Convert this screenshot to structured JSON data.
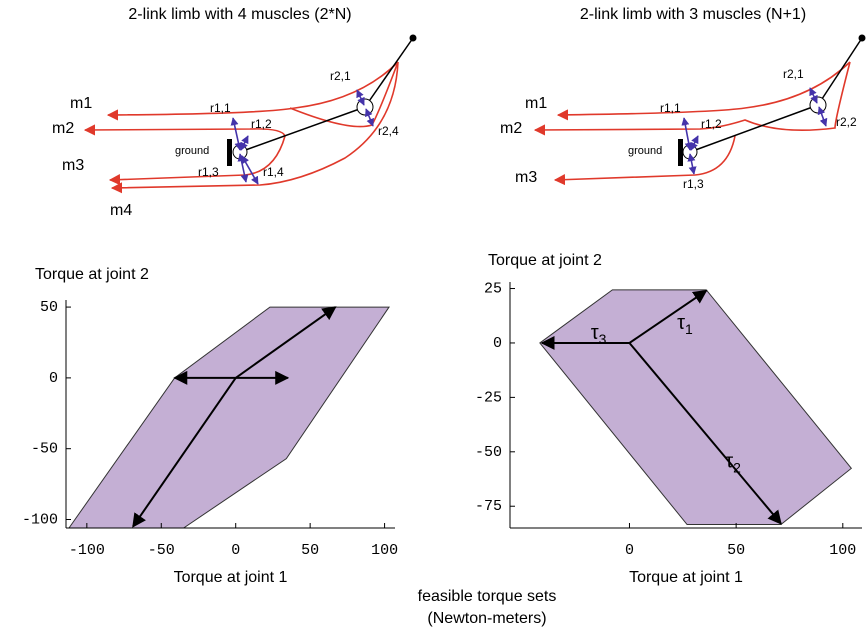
{
  "diagrams": [
    {
      "title": "2-link limb with 4 muscles (2*N)",
      "muscles": [
        "m1",
        "m2",
        "m3",
        "m4"
      ],
      "moment_arms": [
        "r1,1",
        "r1,2",
        "r1,3",
        "r1,4",
        "r2,1",
        "r2,4"
      ],
      "ground": "ground"
    },
    {
      "title": "2-link limb with 3 muscles (N+1)",
      "muscles": [
        "m1",
        "m2",
        "m3"
      ],
      "moment_arms": [
        "r1,1",
        "r1,2",
        "r1,3",
        "r2,1",
        "r2,2"
      ],
      "ground": "ground"
    }
  ],
  "chart_data": [
    {
      "type": "polygon",
      "y_label": "Torque at joint 2",
      "x_label": "Torque at joint 1",
      "xlim": [
        -114,
        107
      ],
      "ylim": [
        -106,
        55
      ],
      "xticks": [
        -100,
        -50,
        0,
        50,
        100
      ],
      "yticks": [
        -100,
        -50,
        0,
        50
      ],
      "color": "#c4afd4",
      "polygon": {
        "x": [
          -112,
          -41,
          23,
          103,
          34,
          -35
        ],
        "y": [
          -106,
          0,
          50,
          50,
          -57,
          -106
        ]
      },
      "vectors": {
        "x": [
          67,
          -69,
          -41,
          35
        ],
        "y": [
          50,
          -105,
          0,
          0
        ]
      }
    },
    {
      "type": "polygon",
      "y_label": "Torque at joint 2",
      "x_label": "Torque at joint 1",
      "xlim": [
        -56,
        109
      ],
      "ylim": [
        -85,
        28
      ],
      "xticks": [
        0,
        50,
        100
      ],
      "yticks": [
        -75,
        -50,
        -25,
        0,
        25
      ],
      "color": "#c4afd4",
      "polygon": {
        "x": [
          -42,
          -8,
          36,
          104,
          71,
          27
        ],
        "y": [
          0,
          24.4,
          24.4,
          -57.6,
          -83.4,
          -83.4
        ]
      },
      "vectors": {
        "x": [
          36,
          71,
          -41
        ],
        "y": [
          24,
          -83,
          0
        ]
      },
      "vector_labels": [
        {
          "symbol": "τ",
          "subscript": "1"
        },
        {
          "symbol": "τ",
          "subscript": "2"
        },
        {
          "symbol": "τ",
          "subscript": "3"
        }
      ]
    }
  ],
  "caption": "feasible torque sets",
  "caption_units": "(Newton-meters)"
}
